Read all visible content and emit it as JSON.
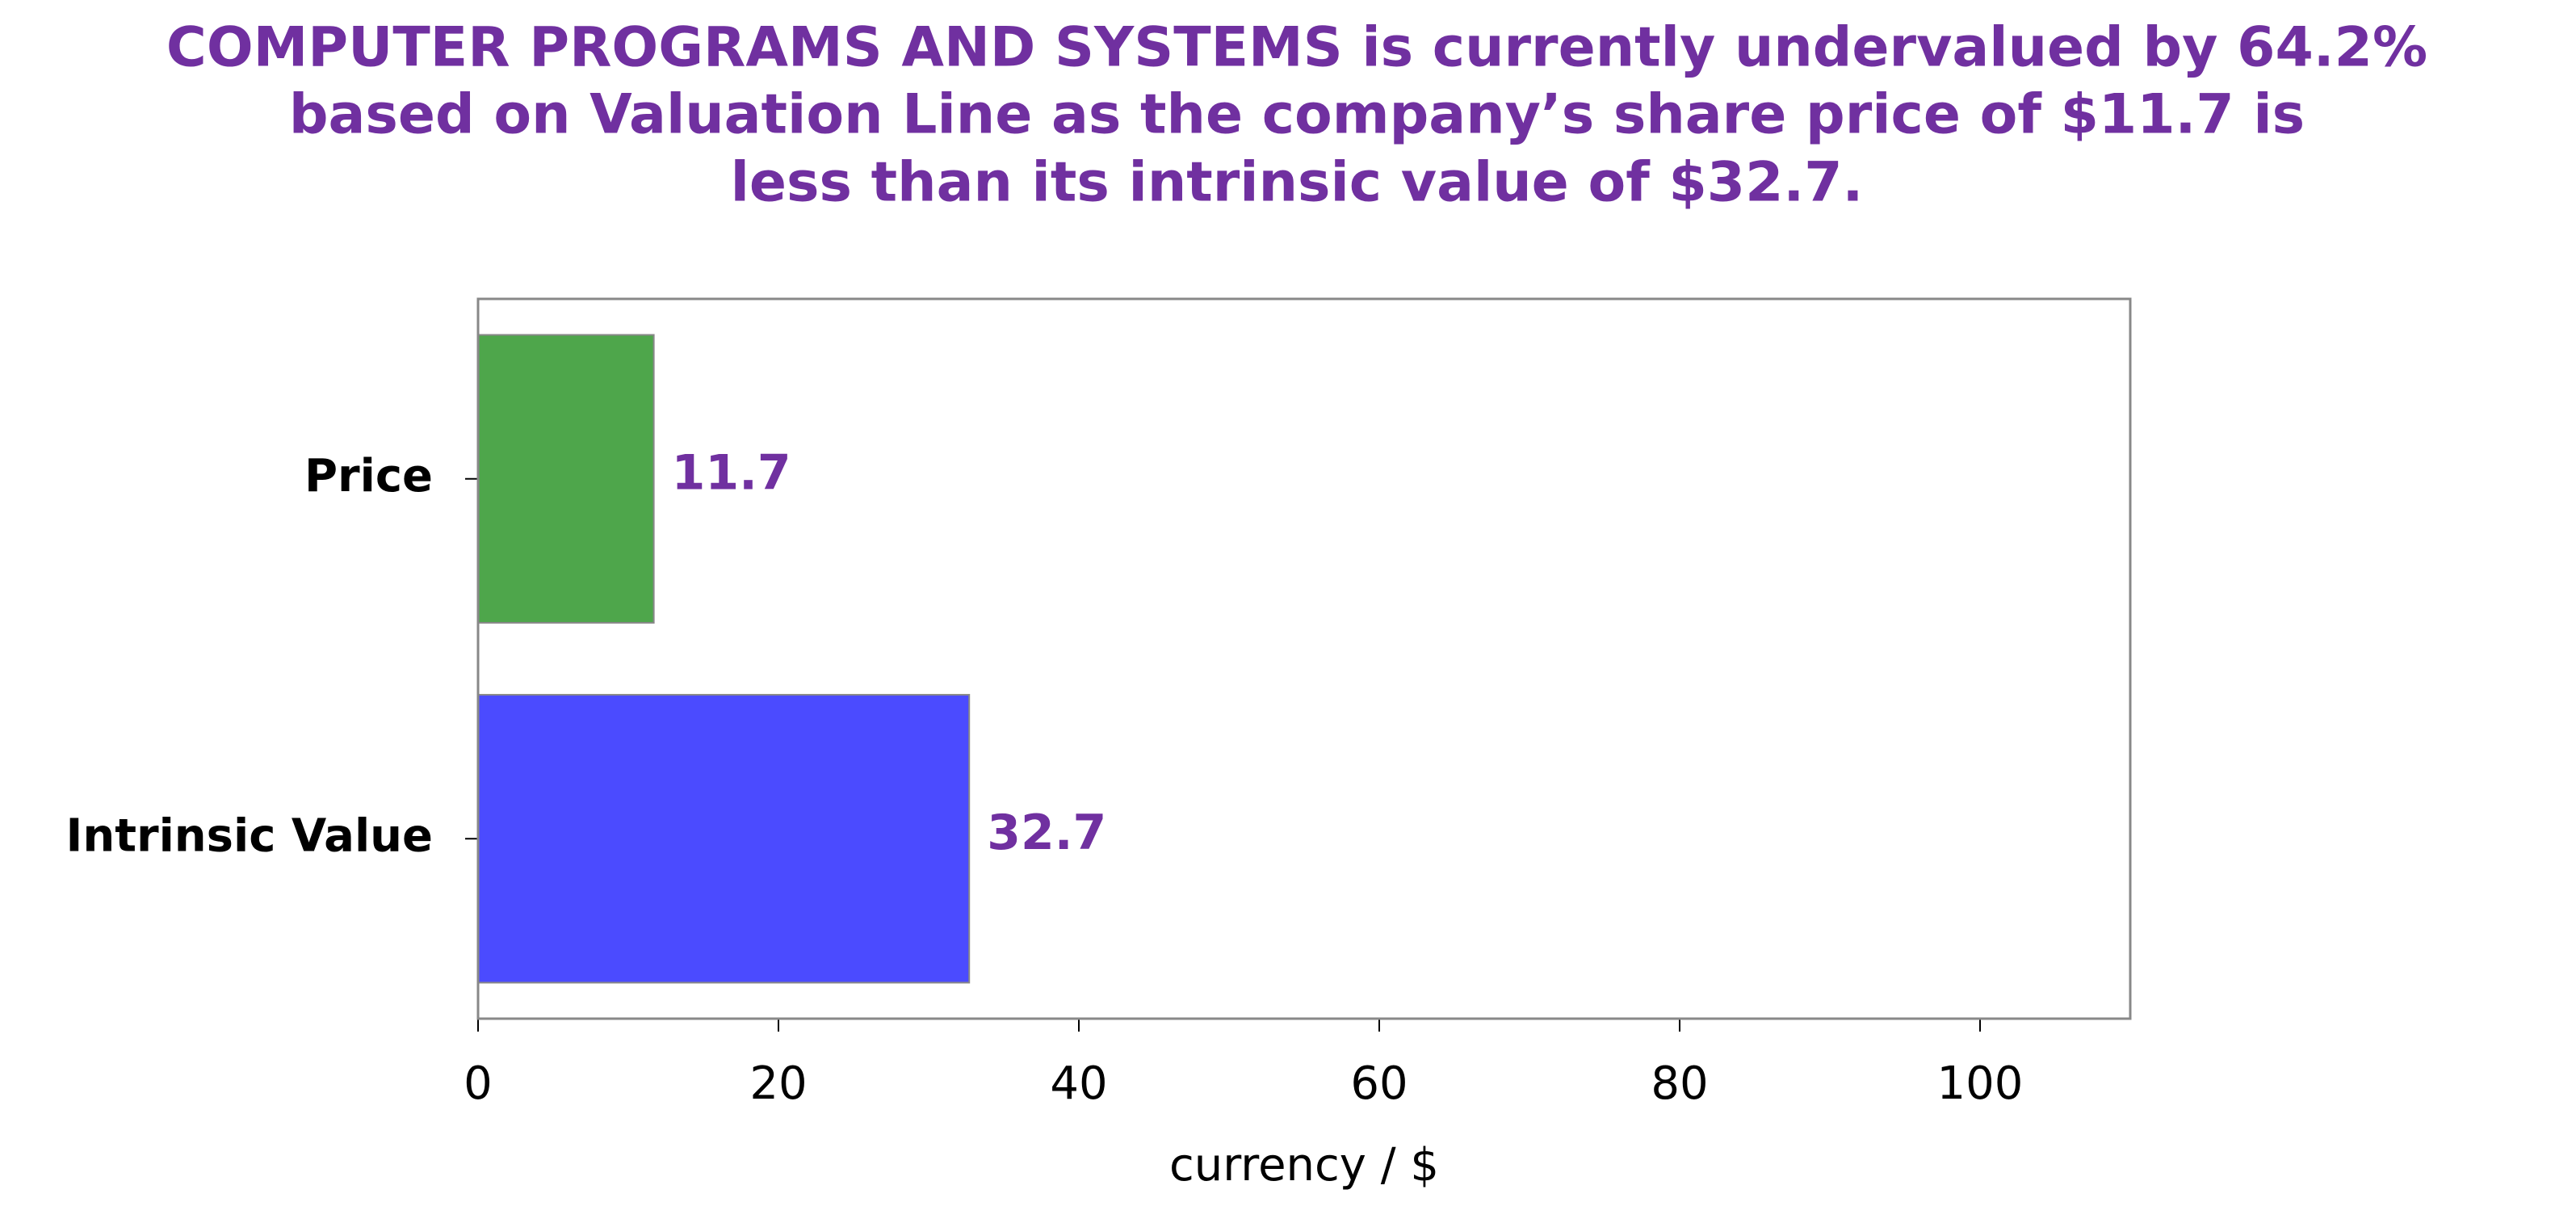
{
  "chart_data": {
    "type": "barh",
    "title": [
      "COMPUTER PROGRAMS AND SYSTEMS is currently undervalued by 64.2%",
      "based on Valuation Line as the company’s share price of $11.7 is",
      "less than its intrinsic value of $32.7."
    ],
    "categories": [
      "Price",
      "Intrinsic Value"
    ],
    "values": [
      11.7,
      32.7
    ],
    "colors": [
      "#4ea64b",
      "#4b4bff"
    ],
    "xlim": [
      0,
      110
    ],
    "xticks": [
      0,
      20,
      40,
      60,
      80,
      100
    ],
    "xlabel": "currency / $"
  }
}
